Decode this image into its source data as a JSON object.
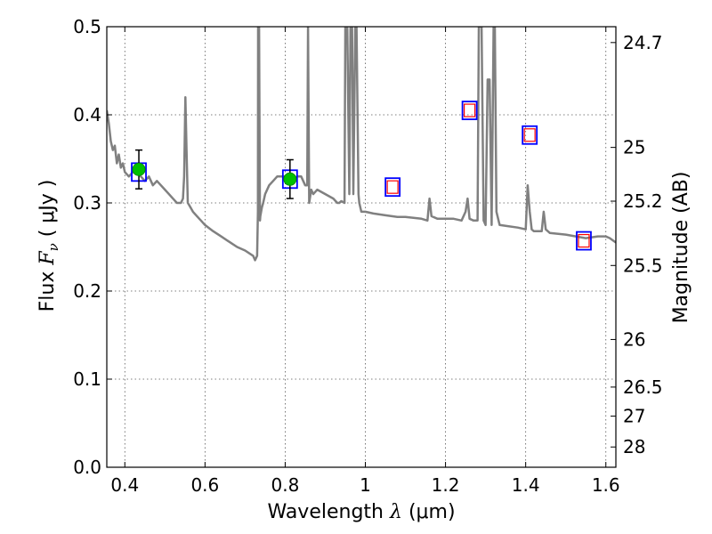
{
  "chart_data": {
    "type": "line",
    "title": "",
    "xlabel": "Wavelength",
    "xlabel_symbol": "λ",
    "xlabel_unit": "(μm)",
    "ylabel": "Flux",
    "ylabel_symbol": "F",
    "ylabel_symbol_sub": "ν",
    "ylabel_unit": "( μJy )",
    "y2label": "Magnitude (AB)",
    "xlim": [
      0.355,
      1.625
    ],
    "ylim": [
      0.0,
      0.5
    ],
    "grid": true,
    "x_ticks": [
      0.4,
      0.6,
      0.8,
      1.0,
      1.2,
      1.4,
      1.6
    ],
    "x_tick_labels": [
      "0.4",
      "0.6",
      "0.8",
      "1",
      "1.2",
      "1.4",
      "1.6"
    ],
    "y_ticks": [
      0.0,
      0.1,
      0.2,
      0.3,
      0.4,
      0.5
    ],
    "y_tick_labels": [
      "0.0",
      "0.1",
      "0.2",
      "0.3",
      "0.4",
      "0.5"
    ],
    "y2_ticks": [
      {
        "label": "24.7",
        "flux": 0.482
      },
      {
        "label": "25",
        "flux": 0.363
      },
      {
        "label": "25.2",
        "flux": 0.302
      },
      {
        "label": "25.5",
        "flux": 0.229
      },
      {
        "label": "26",
        "flux": 0.145
      },
      {
        "label": "26.5",
        "flux": 0.091
      },
      {
        "label": "27",
        "flux": 0.058
      },
      {
        "label": "28",
        "flux": 0.023
      }
    ],
    "series": [
      {
        "kind": "model_spectrum",
        "color": "#808080",
        "x": [
          0.355,
          0.36,
          0.365,
          0.37,
          0.375,
          0.38,
          0.385,
          0.39,
          0.395,
          0.4,
          0.41,
          0.42,
          0.43,
          0.44,
          0.45,
          0.46,
          0.47,
          0.48,
          0.49,
          0.5,
          0.51,
          0.52,
          0.53,
          0.54,
          0.545,
          0.548,
          0.551,
          0.554,
          0.557,
          0.56,
          0.57,
          0.58,
          0.59,
          0.6,
          0.62,
          0.64,
          0.66,
          0.68,
          0.7,
          0.72,
          0.725,
          0.73,
          0.732,
          0.7325,
          0.735,
          0.737,
          0.738,
          0.74,
          0.742,
          0.745,
          0.75,
          0.76,
          0.77,
          0.78,
          0.79,
          0.8,
          0.81,
          0.82,
          0.83,
          0.84,
          0.85,
          0.855,
          0.857,
          0.86,
          0.865,
          0.87,
          0.88,
          0.9,
          0.92,
          0.93,
          0.935,
          0.94,
          0.948,
          0.95,
          0.955,
          0.96,
          0.963,
          0.967,
          0.97,
          0.975,
          0.978,
          0.983,
          0.985,
          0.99,
          1.0,
          1.02,
          1.05,
          1.08,
          1.1,
          1.12,
          1.14,
          1.155,
          1.16,
          1.165,
          1.18,
          1.2,
          1.22,
          1.24,
          1.25,
          1.255,
          1.26,
          1.27,
          1.28,
          1.283,
          1.29,
          1.295,
          1.3,
          1.305,
          1.31,
          1.315,
          1.32,
          1.323,
          1.327,
          1.335,
          1.35,
          1.38,
          1.4,
          1.405,
          1.41,
          1.415,
          1.42,
          1.43,
          1.44,
          1.445,
          1.45,
          1.46,
          1.5,
          1.55,
          1.58,
          1.6,
          1.61,
          1.625
        ],
        "y": [
          0.405,
          0.39,
          0.37,
          0.36,
          0.365,
          0.345,
          0.355,
          0.34,
          0.345,
          0.335,
          0.33,
          0.335,
          0.335,
          0.33,
          0.325,
          0.33,
          0.32,
          0.325,
          0.32,
          0.315,
          0.31,
          0.305,
          0.3,
          0.3,
          0.305,
          0.33,
          0.42,
          0.36,
          0.3,
          0.298,
          0.29,
          0.285,
          0.28,
          0.275,
          0.268,
          0.262,
          0.256,
          0.25,
          0.246,
          0.24,
          0.235,
          0.24,
          0.29,
          0.5,
          0.5,
          0.28,
          0.285,
          0.29,
          0.295,
          0.3,
          0.31,
          0.32,
          0.325,
          0.33,
          0.33,
          0.33,
          0.33,
          0.325,
          0.33,
          0.33,
          0.32,
          0.32,
          0.5,
          0.3,
          0.315,
          0.31,
          0.315,
          0.31,
          0.305,
          0.3,
          0.3,
          0.302,
          0.3,
          0.5,
          0.5,
          0.31,
          0.5,
          0.5,
          0.31,
          0.5,
          0.5,
          0.31,
          0.3,
          0.29,
          0.29,
          0.288,
          0.286,
          0.284,
          0.284,
          0.283,
          0.282,
          0.28,
          0.305,
          0.285,
          0.282,
          0.282,
          0.282,
          0.28,
          0.29,
          0.305,
          0.282,
          0.28,
          0.28,
          0.5,
          0.5,
          0.28,
          0.275,
          0.44,
          0.44,
          0.275,
          0.5,
          0.5,
          0.29,
          0.275,
          0.274,
          0.272,
          0.27,
          0.32,
          0.29,
          0.27,
          0.268,
          0.268,
          0.268,
          0.29,
          0.27,
          0.266,
          0.264,
          0.26,
          0.262,
          0.262,
          0.26,
          0.255
        ]
      },
      {
        "kind": "observed_points",
        "marker": "circle",
        "color": "#00c000",
        "x": [
          0.435,
          0.812
        ],
        "y": [
          0.338,
          0.327
        ],
        "yerr": [
          0.022,
          0.022
        ]
      },
      {
        "kind": "model_photometry",
        "marker": "square",
        "color": "#0000ff",
        "x": [
          0.435,
          0.812,
          1.068,
          1.26,
          1.41,
          1.545
        ],
        "y": [
          0.335,
          0.327,
          0.318,
          0.405,
          0.377,
          0.257
        ]
      },
      {
        "kind": "upper_limits",
        "marker": "square",
        "color": "#ff0000",
        "x": [
          1.068,
          1.26,
          1.41,
          1.545
        ],
        "y": [
          0.318,
          0.405,
          0.377,
          0.257
        ]
      }
    ]
  }
}
